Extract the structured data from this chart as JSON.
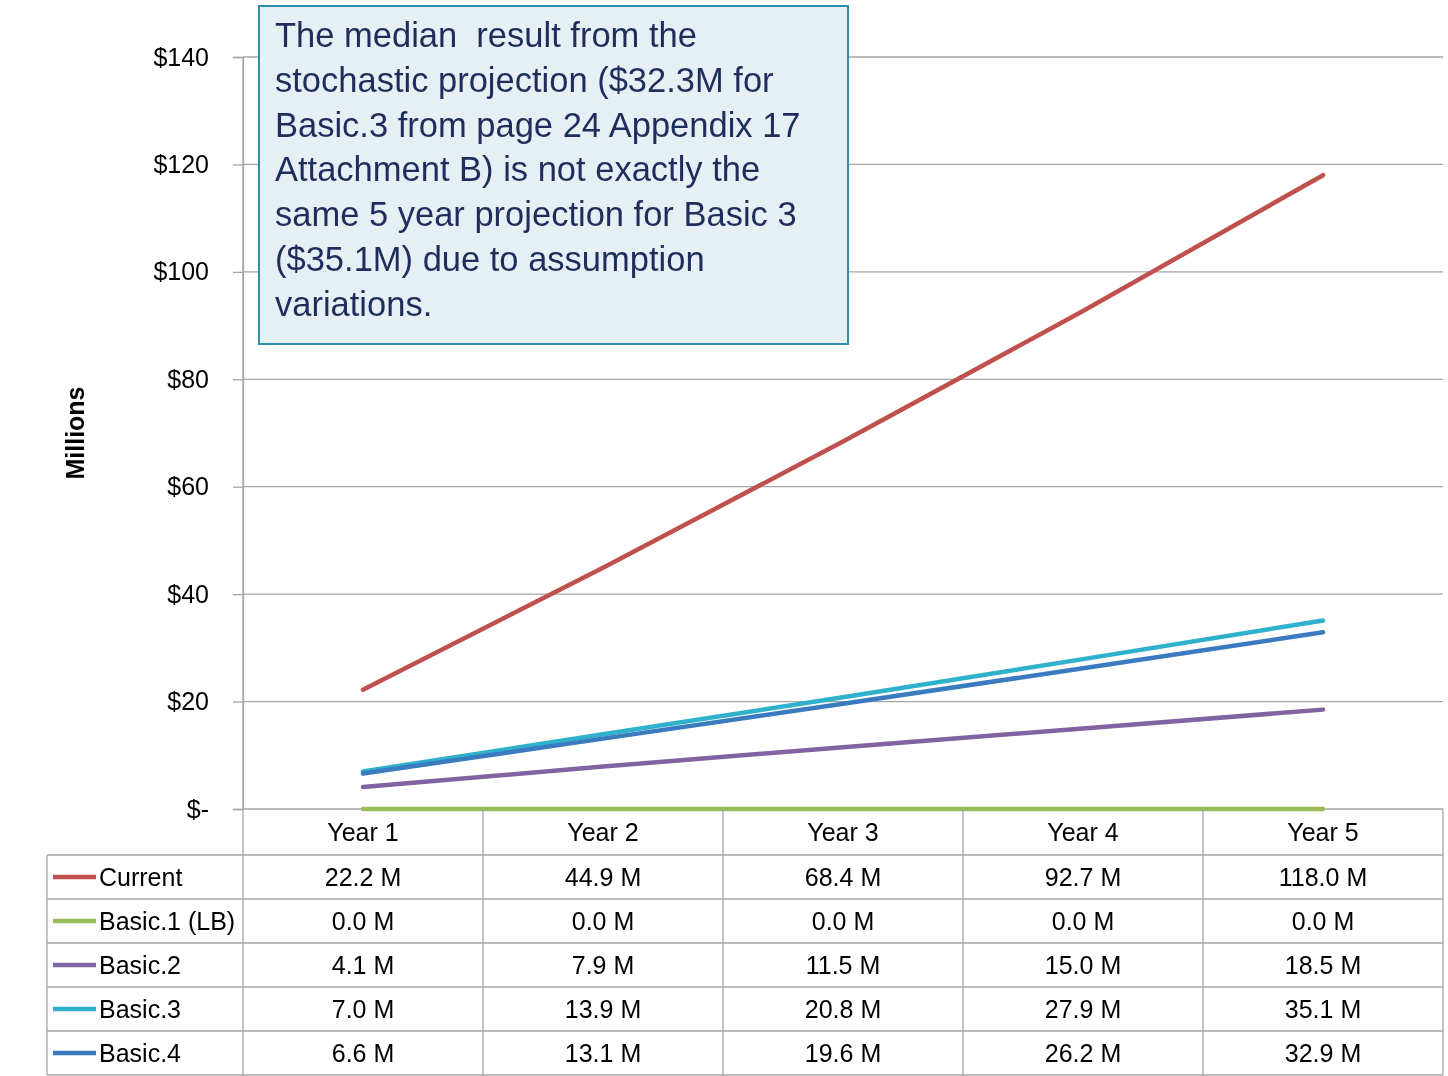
{
  "chart_data": {
    "type": "line",
    "ylabel": "Millions",
    "categories": [
      "Year 1",
      "Year 2",
      "Year 3",
      "Year 4",
      "Year 5"
    ],
    "series": [
      {
        "name": "Current",
        "color": "#c0504d",
        "values": [
          22.2,
          44.9,
          68.4,
          92.7,
          118.0
        ],
        "value_labels": [
          "22.2 M",
          "44.9 M",
          "68.4 M",
          "92.7 M",
          "118.0 M"
        ]
      },
      {
        "name": "Basic.1 (LB)",
        "color": "#9bbb59",
        "values": [
          0.0,
          0.0,
          0.0,
          0.0,
          0.0
        ],
        "value_labels": [
          "0.0 M",
          "0.0 M",
          "0.0 M",
          "0.0 M",
          "0.0 M"
        ]
      },
      {
        "name": "Basic.2",
        "color": "#8064a2",
        "values": [
          4.1,
          7.9,
          11.5,
          15.0,
          18.5
        ],
        "value_labels": [
          "4.1 M",
          "7.9 M",
          "11.5 M",
          "15.0 M",
          "18.5 M"
        ]
      },
      {
        "name": "Basic.3",
        "color": "#2fb1cc",
        "values": [
          7.0,
          13.9,
          20.8,
          27.9,
          35.1
        ],
        "value_labels": [
          "7.0 M",
          "13.9 M",
          "20.8 M",
          "27.9 M",
          "35.1 M"
        ]
      },
      {
        "name": "Basic.4",
        "color": "#3a7bbf",
        "values": [
          6.6,
          13.1,
          19.6,
          26.2,
          32.9
        ],
        "value_labels": [
          "6.6 M",
          "13.1 M",
          "19.6 M",
          "26.2 M",
          "32.9 M"
        ]
      }
    ],
    "ylim": [
      0,
      140
    ],
    "yticks": [
      {
        "value": 0,
        "label": "$-"
      },
      {
        "value": 20,
        "label": "$20"
      },
      {
        "value": 40,
        "label": "$40"
      },
      {
        "value": 60,
        "label": "$60"
      },
      {
        "value": 80,
        "label": "$80"
      },
      {
        "value": 100,
        "label": "$100"
      },
      {
        "value": 120,
        "label": "$120"
      },
      {
        "value": 140,
        "label": "$140"
      }
    ],
    "grid": "y",
    "legend": "bottom left",
    "line_style": "solid",
    "marker": "none",
    "annotations": [
      "The median  result from the stochastic projection ($32.3M for Basic.3 from page 24 Appendix 17 Attachment B) is not exactly the same 5 year projection for Basic 3 ($35.1M) due to assumption variations."
    ]
  }
}
